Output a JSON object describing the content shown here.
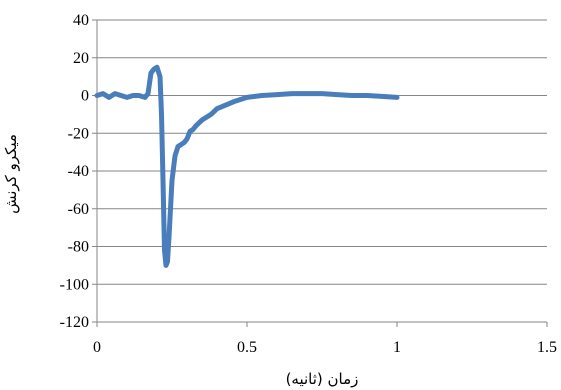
{
  "chart_data": {
    "type": "line",
    "xlabel": "زمان (ثانیه)",
    "ylabel": "میکرو کرنش",
    "xlim": [
      0,
      1.5
    ],
    "ylim": [
      -120,
      40
    ],
    "x_ticks": [
      0,
      0.5,
      1,
      1.5
    ],
    "x_tick_labels": [
      "0",
      "0.5",
      "1",
      "1.5"
    ],
    "y_ticks": [
      -120,
      -100,
      -80,
      -60,
      -40,
      -20,
      0,
      20,
      40
    ],
    "y_tick_labels": [
      "-120",
      "-100",
      "-80",
      "-60",
      "-40",
      "-20",
      "0",
      "20",
      "40"
    ],
    "grid": "horizontal",
    "legend": "none",
    "series": [
      {
        "color": "#4a7ebb",
        "x": [
          0,
          0.02,
          0.04,
          0.06,
          0.08,
          0.1,
          0.12,
          0.14,
          0.16,
          0.17,
          0.18,
          0.19,
          0.2,
          0.21,
          0.215,
          0.22,
          0.225,
          0.23,
          0.235,
          0.24,
          0.25,
          0.26,
          0.27,
          0.28,
          0.29,
          0.3,
          0.31,
          0.32,
          0.33,
          0.35,
          0.38,
          0.4,
          0.43,
          0.46,
          0.5,
          0.55,
          0.6,
          0.65,
          0.7,
          0.75,
          0.8,
          0.85,
          0.9,
          0.95,
          1.0
        ],
        "y": [
          0,
          1,
          -1,
          1,
          0,
          -1,
          0,
          0,
          -1,
          1,
          12,
          14,
          15,
          10,
          -10,
          -45,
          -82,
          -90,
          -88,
          -75,
          -45,
          -32,
          -27,
          -26,
          -25,
          -23,
          -19,
          -18,
          -16,
          -13,
          -10,
          -7,
          -5,
          -3,
          -1,
          0,
          0.5,
          1,
          1,
          1,
          0.5,
          0,
          0,
          -0.5,
          -1
        ]
      }
    ]
  }
}
